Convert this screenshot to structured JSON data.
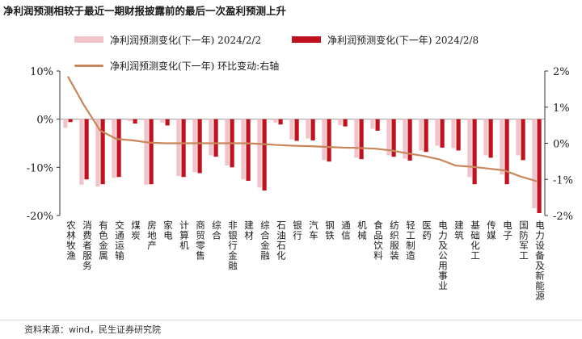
{
  "title": "净利润预测相较于最近一期财报披露前的最后一次盈利预测上升",
  "source": "资料来源：wind，民生证券研究院",
  "colors": {
    "bar1": "#f2c4c9",
    "bar2": "#c0111f",
    "line": "#c8875a",
    "axis": "#333333"
  },
  "chart_data": {
    "type": "bar",
    "categories": [
      "农林牧渔",
      "消费者服务",
      "有色金属",
      "交通运输",
      "煤炭",
      "房地产",
      "家电",
      "计算机",
      "商贸零售",
      "综合",
      "非银行金融",
      "建材",
      "综合金融",
      "石油石化",
      "银行",
      "汽车",
      "钢铁",
      "通信",
      "机械",
      "食品饮料",
      "纺织服装",
      "轻工制造",
      "医药",
      "电力及公用事业",
      "建筑",
      "基础化工",
      "传媒",
      "电子",
      "国防军工",
      "电力设备及新能源"
    ],
    "series": [
      {
        "name": "净利润预测变化(下一年) 2024/2/2",
        "axis": "left",
        "values": [
          -1.8,
          -13.6,
          -14.0,
          -12.2,
          -0.4,
          -13.6,
          -0.7,
          -11.8,
          -11.0,
          -7.5,
          -9.6,
          -12.5,
          -14.2,
          -0.7,
          -4.2,
          -4.0,
          -8.5,
          -1.2,
          -8.0,
          -2.0,
          -7.5,
          -8.2,
          -6.5,
          -5.5,
          -6.0,
          -12.0,
          -7.5,
          -11.5,
          -7.5,
          -18.5
        ]
      },
      {
        "name": "净利润预测变化(下一年) 2024/2/8",
        "axis": "right_bar",
        "values": [
          -0.6,
          -12.5,
          -13.5,
          -12.0,
          -0.9,
          -13.5,
          -1.3,
          -12.0,
          -11.2,
          -7.8,
          -10.0,
          -12.8,
          -14.8,
          -1.1,
          -4.5,
          -4.4,
          -8.8,
          -1.5,
          -8.3,
          -2.4,
          -7.8,
          -8.6,
          -6.8,
          -5.9,
          -6.5,
          -13.5,
          -8.0,
          -13.5,
          -8.5,
          -19.5
        ]
      },
      {
        "name": "净利润预测变化(下一年) 环比变动:右轴",
        "axis": "right",
        "values": [
          1.85,
          1.05,
          0.35,
          0.12,
          0.08,
          0.02,
          0.0,
          0.0,
          0.0,
          0.0,
          0.0,
          0.0,
          -0.02,
          -0.05,
          -0.07,
          -0.08,
          -0.1,
          -0.12,
          -0.13,
          -0.15,
          -0.2,
          -0.28,
          -0.35,
          -0.45,
          -0.62,
          -0.65,
          -0.7,
          -0.75,
          -0.92,
          -1.05
        ]
      }
    ],
    "legend": [
      "净利润预测变化(下一年) 2024/2/2",
      "净利润预测变化(下一年) 2024/2/8",
      "净利润预测变化(下一年) 环比变动:右轴"
    ],
    "y_left": {
      "ylim": [
        -20,
        10
      ],
      "ticks": [
        "10%",
        "0%",
        "-10%",
        "-20%"
      ],
      "tick_values": [
        10,
        0,
        -10,
        -20
      ]
    },
    "y_right": {
      "ylim": [
        -2,
        2
      ],
      "ticks": [
        "2%",
        "1%",
        "0%",
        "-1%",
        "-2%"
      ],
      "tick_values": [
        2,
        1,
        0,
        -1,
        -2
      ]
    }
  }
}
